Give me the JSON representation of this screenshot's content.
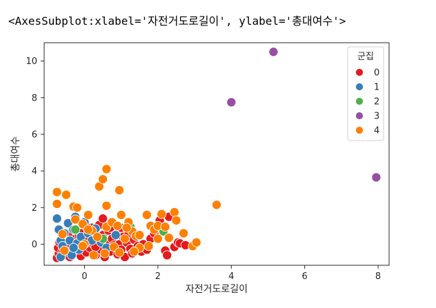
{
  "output_repr": "<AxesSubplot:xlabel='자전거도로길이', ylabel='총대여수'>",
  "chart_data": {
    "type": "scatter",
    "xlabel": "자전거도로길이",
    "ylabel": "총대여수",
    "xlim": [
      -1.1,
      8.3
    ],
    "ylim": [
      -1.15,
      11.0
    ],
    "xticks": [
      0,
      2,
      4,
      6,
      8
    ],
    "yticks": [
      0,
      2,
      4,
      6,
      8,
      10
    ],
    "grid": false,
    "legend": {
      "title": "군집",
      "placement": "top-right",
      "entries": [
        "0",
        "1",
        "2",
        "3",
        "4"
      ]
    },
    "colors": {
      "0": "#e41a1c",
      "1": "#377eb8",
      "2": "#4daf4a",
      "3": "#984ea3",
      "4": "#ff7f00"
    },
    "series": [
      {
        "name": "0",
        "points": [
          [
            -0.75,
            -0.75
          ],
          [
            -0.7,
            -0.5
          ],
          [
            -0.72,
            -0.2
          ],
          [
            -0.68,
            0.1
          ],
          [
            -0.6,
            -0.35
          ],
          [
            -0.55,
            -0.6
          ],
          [
            -0.5,
            0.05
          ],
          [
            -0.45,
            -0.2
          ],
          [
            -0.4,
            -0.7
          ],
          [
            -0.35,
            0.3
          ],
          [
            -0.3,
            -0.45
          ],
          [
            -0.25,
            0.0
          ],
          [
            -0.2,
            -0.3
          ],
          [
            -0.15,
            0.45
          ],
          [
            -0.1,
            -0.65
          ],
          [
            -0.05,
            -0.1
          ],
          [
            0.0,
            0.2
          ],
          [
            0.05,
            -0.45
          ],
          [
            0.1,
            0.6
          ],
          [
            0.15,
            -0.2
          ],
          [
            0.2,
            0.9
          ],
          [
            0.25,
            0.0
          ],
          [
            0.3,
            -0.6
          ],
          [
            0.35,
            0.35
          ],
          [
            0.4,
            1.05
          ],
          [
            0.45,
            -0.3
          ],
          [
            0.5,
            0.5
          ],
          [
            0.55,
            -0.7
          ],
          [
            0.6,
            0.15
          ],
          [
            0.65,
            0.75
          ],
          [
            0.7,
            -0.4
          ],
          [
            0.75,
            0.3
          ],
          [
            0.8,
            -0.05
          ],
          [
            0.85,
            0.6
          ],
          [
            0.9,
            -0.55
          ],
          [
            0.95,
            0.0
          ],
          [
            1.0,
            -0.3
          ],
          [
            1.05,
            0.4
          ],
          [
            1.1,
            -0.7
          ],
          [
            1.15,
            0.1
          ],
          [
            1.2,
            0.55
          ],
          [
            1.25,
            -0.25
          ],
          [
            1.3,
            -0.5
          ],
          [
            1.35,
            0.25
          ],
          [
            1.45,
            -0.1
          ],
          [
            1.55,
            -0.4
          ],
          [
            1.6,
            0.0
          ],
          [
            1.7,
            -0.3
          ],
          [
            1.8,
            0.3
          ],
          [
            1.9,
            0.6
          ],
          [
            2.05,
            1.3
          ],
          [
            2.1,
            0.9
          ],
          [
            2.2,
            -0.35
          ],
          [
            2.25,
            -0.6
          ],
          [
            2.3,
            1.5
          ],
          [
            2.45,
            -0.15
          ],
          [
            2.55,
            0.1
          ],
          [
            2.6,
            0.05
          ],
          [
            2.75,
            -0.05
          ],
          [
            0.3,
            -0.15
          ],
          [
            -0.1,
            0.6
          ],
          [
            0.5,
            1.4
          ],
          [
            0.05,
            0.95
          ],
          [
            0.7,
            0.9
          ],
          [
            -0.45,
            0.55
          ],
          [
            1.0,
            0.9
          ]
        ]
      },
      {
        "name": "1",
        "points": [
          [
            -0.75,
            1.4
          ],
          [
            -0.7,
            0.8
          ],
          [
            -0.65,
            0.2
          ],
          [
            -0.6,
            -0.1
          ],
          [
            -0.55,
            0.6
          ],
          [
            -0.5,
            -0.4
          ],
          [
            -0.45,
            1.15
          ],
          [
            -0.4,
            0.2
          ],
          [
            -0.35,
            -0.6
          ],
          [
            -0.3,
            0.8
          ],
          [
            -0.25,
            1.5
          ],
          [
            -0.2,
            0.05
          ],
          [
            -0.15,
            -0.3
          ],
          [
            -0.1,
            0.4
          ],
          [
            0.0,
            1.2
          ],
          [
            0.1,
            0.6
          ],
          [
            0.2,
            0.2
          ],
          [
            0.3,
            0.85
          ],
          [
            0.45,
            0.1
          ],
          [
            0.6,
            -0.2
          ],
          [
            0.75,
            1.2
          ],
          [
            0.85,
            0.5
          ],
          [
            -0.65,
            -0.7
          ],
          [
            -0.3,
            -0.2
          ]
        ]
      },
      {
        "name": "2",
        "points": [
          [
            -0.25,
            0.8
          ],
          [
            1.25,
            0.95
          ],
          [
            2.15,
            0.7
          ],
          [
            0.5,
            0.3
          ]
        ]
      },
      {
        "name": "3",
        "points": [
          [
            4.0,
            7.75
          ],
          [
            5.15,
            10.5
          ],
          [
            7.95,
            3.65
          ]
        ]
      },
      {
        "name": "4",
        "points": [
          [
            -0.75,
            2.85
          ],
          [
            -0.75,
            2.2
          ],
          [
            -0.5,
            2.7
          ],
          [
            -0.3,
            2.05
          ],
          [
            -0.2,
            2.0
          ],
          [
            -0.25,
            1.35
          ],
          [
            -0.05,
            1.1
          ],
          [
            0.1,
            1.6
          ],
          [
            0.2,
            0.75
          ],
          [
            0.4,
            3.15
          ],
          [
            0.5,
            3.55
          ],
          [
            0.6,
            4.1
          ],
          [
            0.6,
            2.1
          ],
          [
            0.6,
            0.95
          ],
          [
            0.75,
            1.2
          ],
          [
            0.9,
            1.0
          ],
          [
            0.95,
            2.95
          ],
          [
            1.0,
            1.6
          ],
          [
            1.1,
            0.3
          ],
          [
            1.2,
            1.2
          ],
          [
            1.3,
            0.7
          ],
          [
            1.4,
            0.45
          ],
          [
            1.5,
            0.5
          ],
          [
            1.7,
            1.6
          ],
          [
            1.8,
            1.0
          ],
          [
            1.9,
            0.8
          ],
          [
            2.0,
            1.0
          ],
          [
            2.1,
            1.65
          ],
          [
            2.2,
            0.95
          ],
          [
            2.3,
            0.35
          ],
          [
            2.45,
            1.75
          ],
          [
            2.5,
            1.3
          ],
          [
            2.7,
            0.6
          ],
          [
            2.95,
            -0.1
          ],
          [
            3.05,
            0.1
          ],
          [
            3.6,
            2.15
          ],
          [
            -0.55,
            -0.35
          ],
          [
            0.0,
            0.0
          ],
          [
            0.35,
            0.4
          ],
          [
            0.8,
            -0.15
          ],
          [
            1.5,
            -0.2
          ],
          [
            -0.05,
            -0.1
          ],
          [
            0.25,
            -0.6
          ],
          [
            0.55,
            -0.5
          ],
          [
            0.95,
            -0.45
          ],
          [
            1.35,
            -0.4
          ],
          [
            1.75,
            -0.1
          ],
          [
            2.0,
            0.3
          ],
          [
            1.15,
            0.9
          ],
          [
            -0.6,
            0.55
          ],
          [
            0.1,
            0.8
          ]
        ]
      }
    ]
  }
}
